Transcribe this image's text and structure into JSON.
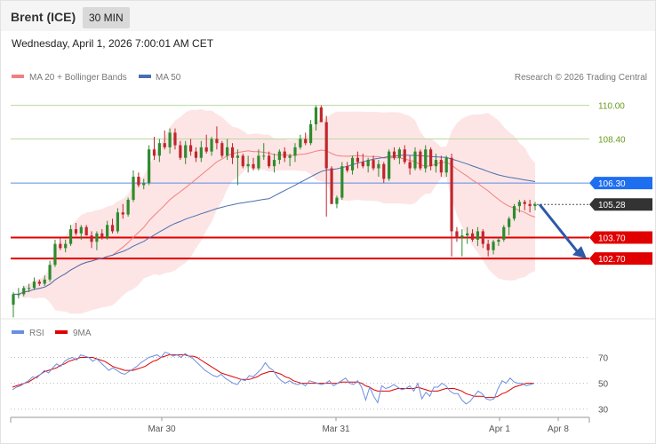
{
  "header": {
    "instrument": "Brent (ICE)",
    "timeframe": "30 MIN"
  },
  "timestamp": "Wednesday, April 1, 2026 7:00:01 AM CET",
  "legend": {
    "ma20": "MA 20 + Bollinger Bands",
    "ma50": "MA 50",
    "credit": "Research © 2026 Trading Central"
  },
  "colors": {
    "up": "#2e8b2e",
    "down": "#c0262d",
    "ma20": "#f08080",
    "ma50": "#4a6fb0",
    "bands": "#fde0e0",
    "support": "#e00000",
    "resistance_line": "#b7d9a0",
    "pivot": "#5c8be8",
    "rsi": "#6a8fe0",
    "rsi_ma": "#e00000",
    "arrow": "#2e5aa7"
  },
  "chart_data": [
    {
      "type": "candlestick",
      "title": "Brent (ICE)",
      "ylim": [
        100.0,
        111.0
      ],
      "levels": [
        {
          "value": "110.00",
          "kind": "resistance"
        },
        {
          "value": "108.40",
          "kind": "resistance"
        },
        {
          "value": "106.30",
          "kind": "pivot"
        },
        {
          "value": "105.28",
          "kind": "last"
        },
        {
          "value": "103.70",
          "kind": "support"
        },
        {
          "value": "102.70",
          "kind": "support"
        }
      ],
      "x_labels": [
        "Mar 30",
        "Mar 31",
        "Apr 1",
        "Apr 8"
      ],
      "candles": [
        [
          100.5,
          101.1,
          99.9,
          101.0
        ],
        [
          101.0,
          101.3,
          100.8,
          101.0
        ],
        [
          101.0,
          101.4,
          100.9,
          101.3
        ],
        [
          101.3,
          101.5,
          101.1,
          101.3
        ],
        [
          101.3,
          101.8,
          101.2,
          101.6
        ],
        [
          101.6,
          101.7,
          101.4,
          101.5
        ],
        [
          101.5,
          101.9,
          101.4,
          101.7
        ],
        [
          101.7,
          102.6,
          101.6,
          102.4
        ],
        [
          102.4,
          103.6,
          102.3,
          103.4
        ],
        [
          103.4,
          103.7,
          103.1,
          103.2
        ],
        [
          103.2,
          103.6,
          103.0,
          103.4
        ],
        [
          103.4,
          104.3,
          103.3,
          104.1
        ],
        [
          104.1,
          104.4,
          103.8,
          103.9
        ],
        [
          103.9,
          104.3,
          103.6,
          104.2
        ],
        [
          104.2,
          104.3,
          103.8,
          103.8
        ],
        [
          103.8,
          104.0,
          103.2,
          103.5
        ],
        [
          103.5,
          104.0,
          103.1,
          103.9
        ],
        [
          103.9,
          104.1,
          103.6,
          103.7
        ],
        [
          103.7,
          104.5,
          103.6,
          104.3
        ],
        [
          104.3,
          104.6,
          103.9,
          104.0
        ],
        [
          104.0,
          105.1,
          103.9,
          104.9
        ],
        [
          104.9,
          105.3,
          104.6,
          104.8
        ],
        [
          104.8,
          105.6,
          104.7,
          105.5
        ],
        [
          105.5,
          106.9,
          105.4,
          106.6
        ],
        [
          106.6,
          106.8,
          106.1,
          106.2
        ],
        [
          106.2,
          106.5,
          106.0,
          106.3
        ],
        [
          106.3,
          108.1,
          106.2,
          107.9
        ],
        [
          107.9,
          108.5,
          107.4,
          107.6
        ],
        [
          107.6,
          108.4,
          107.3,
          108.2
        ],
        [
          108.2,
          108.8,
          107.9,
          108.0
        ],
        [
          108.0,
          108.9,
          107.7,
          108.7
        ],
        [
          108.7,
          108.9,
          107.9,
          108.1
        ],
        [
          108.1,
          108.3,
          107.4,
          107.5
        ],
        [
          107.5,
          108.3,
          107.2,
          108.1
        ],
        [
          108.1,
          108.4,
          107.6,
          107.8
        ],
        [
          107.8,
          108.0,
          107.3,
          107.5
        ],
        [
          107.5,
          108.3,
          107.3,
          108.0
        ],
        [
          108.0,
          108.6,
          107.7,
          107.8
        ],
        [
          107.8,
          108.5,
          107.6,
          108.4
        ],
        [
          108.4,
          109.0,
          107.9,
          108.2
        ],
        [
          108.2,
          108.3,
          107.5,
          107.6
        ],
        [
          107.6,
          108.4,
          107.4,
          108.0
        ],
        [
          108.0,
          108.2,
          107.2,
          107.5
        ],
        [
          107.5,
          107.9,
          106.2,
          107.6
        ],
        [
          107.6,
          107.7,
          107.0,
          107.1
        ],
        [
          107.1,
          107.6,
          106.8,
          107.2
        ],
        [
          107.2,
          107.5,
          106.9,
          107.0
        ],
        [
          107.0,
          107.9,
          106.9,
          107.6
        ],
        [
          107.6,
          108.2,
          107.4,
          107.6
        ],
        [
          107.6,
          107.8,
          107.0,
          107.1
        ],
        [
          107.1,
          107.7,
          106.8,
          107.4
        ],
        [
          107.4,
          107.9,
          107.2,
          107.8
        ],
        [
          107.8,
          108.0,
          107.3,
          107.5
        ],
        [
          107.5,
          107.7,
          107.1,
          107.6
        ],
        [
          107.6,
          108.2,
          107.3,
          108.0
        ],
        [
          108.0,
          108.6,
          107.9,
          108.4
        ],
        [
          108.4,
          108.7,
          108.1,
          108.2
        ],
        [
          108.2,
          109.3,
          108.1,
          109.1
        ],
        [
          109.1,
          110.0,
          108.8,
          109.9
        ],
        [
          109.9,
          110.0,
          109.2,
          109.2
        ],
        [
          109.2,
          109.5,
          104.7,
          107.0
        ],
        [
          107.0,
          107.1,
          105.3,
          105.3
        ],
        [
          105.3,
          105.7,
          105.1,
          105.6
        ],
        [
          105.6,
          107.3,
          105.5,
          107.1
        ],
        [
          107.1,
          107.3,
          106.8,
          106.9
        ],
        [
          106.9,
          107.6,
          106.7,
          107.5
        ],
        [
          107.5,
          107.8,
          107.0,
          107.3
        ],
        [
          107.3,
          107.7,
          107.0,
          107.1
        ],
        [
          107.1,
          107.5,
          106.8,
          107.4
        ],
        [
          107.4,
          107.6,
          106.9,
          107.0
        ],
        [
          107.0,
          107.4,
          106.6,
          107.2
        ],
        [
          107.2,
          107.3,
          106.3,
          106.5
        ],
        [
          106.5,
          107.9,
          106.4,
          107.8
        ],
        [
          107.8,
          108.0,
          107.4,
          107.5
        ],
        [
          107.5,
          108.0,
          107.2,
          107.9
        ],
        [
          107.9,
          108.1,
          107.2,
          107.3
        ],
        [
          107.3,
          107.6,
          106.7,
          107.0
        ],
        [
          107.0,
          108.0,
          106.9,
          107.8
        ],
        [
          107.8,
          107.9,
          106.9,
          107.0
        ],
        [
          107.0,
          108.1,
          106.8,
          107.9
        ],
        [
          107.9,
          108.0,
          106.9,
          107.1
        ],
        [
          107.1,
          107.7,
          106.8,
          107.4
        ],
        [
          107.4,
          107.6,
          106.6,
          106.8
        ],
        [
          106.8,
          107.6,
          106.6,
          107.5
        ],
        [
          107.5,
          107.7,
          102.8,
          104.0
        ],
        [
          104.0,
          104.2,
          103.5,
          103.7
        ],
        [
          103.7,
          104.1,
          102.8,
          103.8
        ],
        [
          103.8,
          104.2,
          103.4,
          103.9
        ],
        [
          103.9,
          104.1,
          103.5,
          103.6
        ],
        [
          103.6,
          104.2,
          103.3,
          104.0
        ],
        [
          104.0,
          104.1,
          103.2,
          103.4
        ],
        [
          103.4,
          103.6,
          102.8,
          103.1
        ],
        [
          103.1,
          103.6,
          102.9,
          103.5
        ],
        [
          103.5,
          103.7,
          103.3,
          103.6
        ],
        [
          103.6,
          104.3,
          103.5,
          104.2
        ],
        [
          104.2,
          104.7,
          103.8,
          104.6
        ],
        [
          104.6,
          105.3,
          104.5,
          105.2
        ],
        [
          105.2,
          105.5,
          104.9,
          105.4
        ],
        [
          105.4,
          105.5,
          105.0,
          105.3
        ],
        [
          105.3,
          105.5,
          104.9,
          105.2
        ],
        [
          105.2,
          105.4,
          105.0,
          105.28
        ]
      ],
      "projection": {
        "from": 105.28,
        "to": 102.7
      }
    },
    {
      "type": "line",
      "title": "RSI",
      "ylim": [
        25,
        80
      ],
      "ticks": [
        "70",
        "50",
        "30"
      ],
      "series": [
        {
          "name": "RSI",
          "values": [
            45,
            47,
            48,
            50,
            52,
            55,
            54,
            57,
            60,
            58,
            62,
            65,
            63,
            67,
            69,
            70,
            68,
            72,
            71,
            70,
            67,
            69,
            66,
            63,
            60,
            62,
            60,
            58,
            57,
            59,
            61,
            63,
            66,
            68,
            70,
            71,
            72,
            70,
            74,
            73,
            71,
            72,
            70,
            73,
            71,
            69,
            66,
            63,
            60,
            58,
            56,
            55,
            57,
            54,
            52,
            50,
            49,
            53,
            52,
            56,
            55,
            58,
            61,
            66,
            62,
            60,
            55,
            52,
            50,
            52,
            50,
            49,
            50,
            48,
            52,
            51,
            50,
            49,
            50,
            52,
            48,
            50,
            52,
            54,
            50,
            49,
            52,
            47,
            37,
            47,
            40,
            35,
            48,
            46,
            47,
            49,
            47,
            45,
            46,
            48,
            44,
            50,
            38,
            43,
            40,
            47,
            47,
            50,
            48,
            44,
            42,
            42,
            37,
            34,
            36,
            40,
            44,
            42,
            38,
            37,
            38,
            46,
            52,
            50,
            54,
            51,
            50,
            50,
            48,
            49,
            50
          ]
        },
        {
          "name": "9MA",
          "values": [
            47,
            48,
            49,
            50,
            51,
            53,
            55,
            57,
            59,
            60,
            61,
            62,
            64,
            65,
            67,
            68,
            69,
            70,
            70,
            70,
            70,
            69,
            68,
            67,
            65,
            63,
            62,
            61,
            60,
            60,
            60,
            61,
            62,
            63,
            65,
            67,
            68,
            70,
            71,
            72,
            72,
            72,
            72,
            72,
            71,
            71,
            70,
            68,
            66,
            64,
            62,
            60,
            58,
            57,
            56,
            55,
            54,
            53,
            53,
            53,
            54,
            55,
            57,
            58,
            59,
            59,
            58,
            57,
            55,
            54,
            52,
            51,
            50,
            50,
            50,
            50,
            50,
            50,
            50,
            50,
            50,
            50,
            51,
            51,
            51,
            51,
            51,
            50,
            48,
            47,
            45,
            44,
            44,
            44,
            44,
            45,
            46,
            46,
            46,
            46,
            46,
            47,
            46,
            45,
            44,
            44,
            44,
            45,
            46,
            46,
            46,
            45,
            44,
            42,
            41,
            40,
            40,
            40,
            39,
            39,
            39,
            40,
            42,
            43,
            45,
            47,
            48,
            49,
            50,
            50,
            50
          ]
        }
      ]
    }
  ],
  "rsi_legend": {
    "rsi": "RSI",
    "ma": "9MA"
  }
}
